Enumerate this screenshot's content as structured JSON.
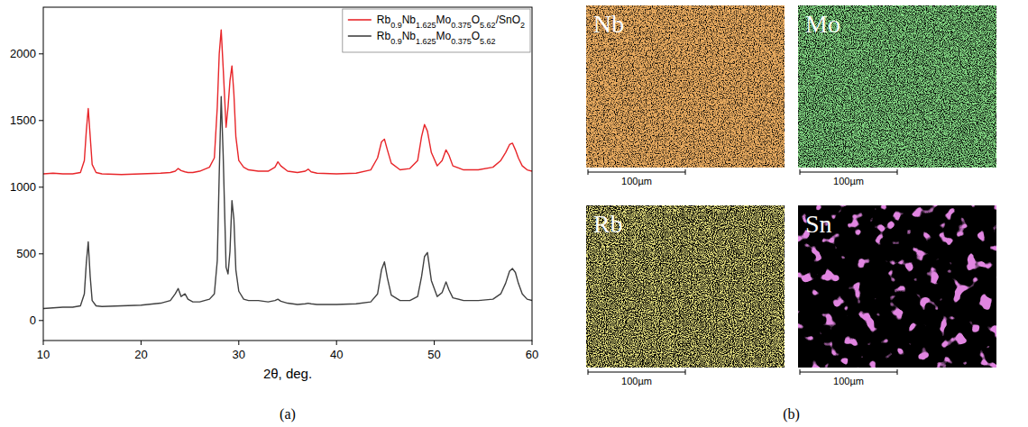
{
  "chart_data": {
    "type": "line",
    "panel_label": "(a)",
    "x_label": "2θ, deg.",
    "x": [
      10,
      11,
      12,
      13,
      13.8,
      14.2,
      14.4,
      14.6,
      14.8,
      15.0,
      15.4,
      16,
      18,
      20,
      22,
      23,
      23.5,
      23.8,
      24.1,
      24.5,
      24.8,
      25.3,
      26,
      27,
      27.5,
      27.8,
      28.0,
      28.2,
      28.4,
      28.7,
      28.9,
      29.1,
      29.3,
      29.5,
      29.7,
      30.0,
      30.5,
      31,
      32,
      33,
      33.7,
      34.0,
      34.3,
      35,
      36,
      36.8,
      37.1,
      37.4,
      38,
      40,
      42,
      43.5,
      44.2,
      44.6,
      44.9,
      45.2,
      45.6,
      46.5,
      47.5,
      48.3,
      48.7,
      49.0,
      49.3,
      49.7,
      50.3,
      50.8,
      51.2,
      51.5,
      51.9,
      53,
      54.5,
      56,
      56.8,
      57.3,
      57.7,
      58.0,
      58.3,
      58.6,
      59.0,
      59.5,
      60
    ],
    "series": [
      {
        "name": "Rb0.9Nb1.625Mo0.375O5.62/SnO2",
        "color": "#e8262a",
        "values": [
          1100,
          1105,
          1100,
          1100,
          1110,
          1200,
          1420,
          1590,
          1380,
          1170,
          1110,
          1100,
          1095,
          1100,
          1105,
          1110,
          1120,
          1140,
          1125,
          1115,
          1110,
          1110,
          1120,
          1150,
          1220,
          1600,
          2000,
          2180,
          1900,
          1450,
          1600,
          1800,
          1910,
          1700,
          1380,
          1200,
          1150,
          1130,
          1120,
          1120,
          1150,
          1190,
          1160,
          1120,
          1110,
          1120,
          1135,
          1115,
          1105,
          1100,
          1105,
          1130,
          1220,
          1340,
          1360,
          1280,
          1180,
          1130,
          1140,
          1200,
          1380,
          1470,
          1420,
          1260,
          1160,
          1200,
          1280,
          1240,
          1160,
          1130,
          1130,
          1150,
          1200,
          1260,
          1320,
          1330,
          1280,
          1220,
          1160,
          1130,
          1120
        ]
      },
      {
        "name": "Rb0.9Nb1.625Mo0.375O5.62",
        "color": "#404040",
        "values": [
          90,
          95,
          100,
          100,
          110,
          200,
          430,
          590,
          330,
          150,
          110,
          105,
          110,
          115,
          130,
          150,
          200,
          240,
          180,
          200,
          160,
          140,
          140,
          160,
          200,
          450,
          1100,
          1680,
          1250,
          400,
          350,
          520,
          900,
          760,
          380,
          220,
          160,
          150,
          150,
          140,
          150,
          160,
          145,
          130,
          120,
          125,
          130,
          125,
          120,
          120,
          125,
          140,
          200,
          380,
          440,
          320,
          190,
          150,
          150,
          180,
          330,
          480,
          510,
          300,
          180,
          210,
          290,
          230,
          170,
          150,
          150,
          160,
          200,
          280,
          370,
          390,
          360,
          280,
          200,
          160,
          150
        ]
      }
    ],
    "xlim": [
      10,
      60
    ],
    "xticks": [
      10,
      20,
      30,
      40,
      50,
      60
    ],
    "ylim": [
      -150,
      2350
    ],
    "yticks": [
      0,
      500,
      1000,
      1500,
      2000
    ],
    "legend": "upper right"
  },
  "maps": {
    "panel_label": "(b)",
    "items": [
      {
        "element": "Nb",
        "color": "#d2691e",
        "scale_bar": "100µm"
      },
      {
        "element": "Mo",
        "color": "#3cb43c",
        "scale_bar": "100µm"
      },
      {
        "element": "Rb",
        "color": "#d8cc3a",
        "scale_bar": "100µm"
      },
      {
        "element": "Sn",
        "color": "#c03cc0",
        "scale_bar": "100µm"
      }
    ]
  }
}
